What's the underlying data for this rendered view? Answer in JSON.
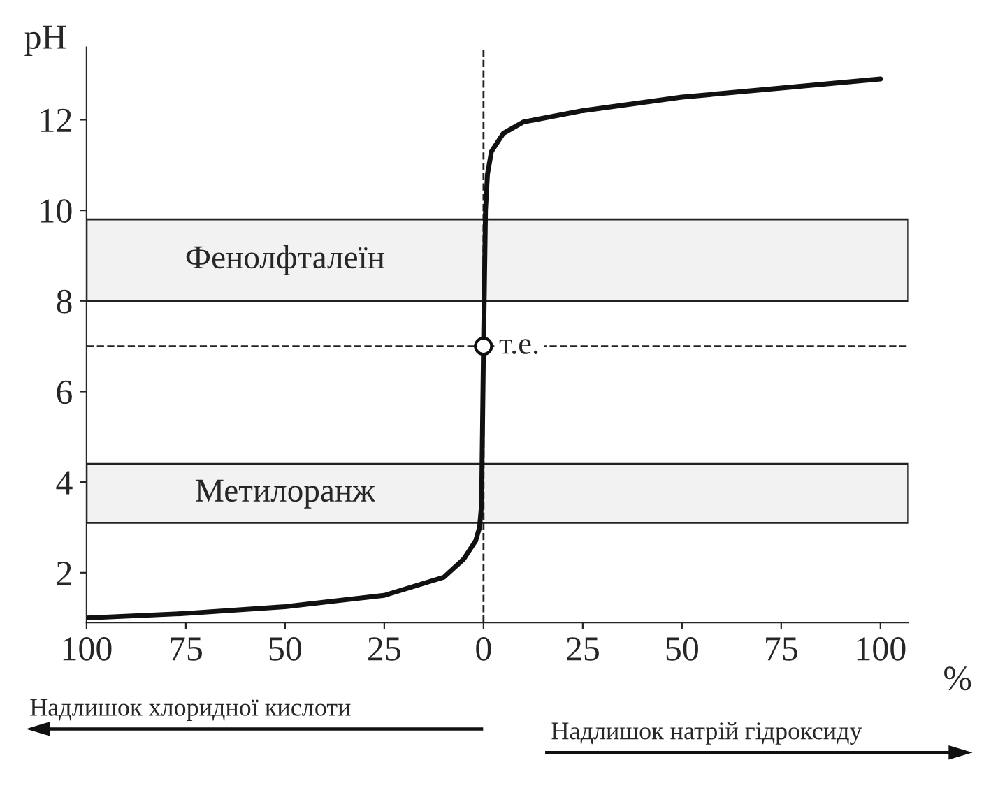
{
  "chart_data": {
    "type": "line",
    "ylabel": "pH",
    "xlabel": "%",
    "x": [
      -100,
      -75,
      -50,
      -25,
      -10,
      -5,
      -2,
      -1,
      -0.5,
      0,
      0.5,
      1,
      2,
      5,
      10,
      25,
      50,
      75,
      100
    ],
    "series": [
      {
        "color": "#111111",
        "values": [
          1.0,
          1.1,
          1.25,
          1.5,
          1.9,
          2.3,
          2.7,
          3.0,
          3.5,
          7,
          10,
          10.8,
          11.3,
          11.7,
          11.95,
          12.2,
          12.5,
          12.7,
          12.9
        ]
      },
      {
        "type": "scatter",
        "x": [
          0
        ],
        "values": [
          7
        ],
        "color": "#ffffff",
        "marker": "circle"
      }
    ],
    "xlim": [
      -100,
      107
    ],
    "ylim": [
      0.9,
      13.6
    ],
    "xticks": [
      {
        "value": -100,
        "label": "100"
      },
      {
        "value": -75,
        "label": "75"
      },
      {
        "value": -50,
        "label": "50"
      },
      {
        "value": -25,
        "label": "25"
      },
      0,
      25,
      50,
      75,
      100
    ],
    "yticks": [
      2,
      4,
      6,
      8,
      10,
      12
    ],
    "bands": [
      {
        "axis": "y",
        "from": 8,
        "to": 9.8,
        "label": "Фенолфталеїн",
        "color": "#f2f2f2"
      },
      {
        "axis": "y",
        "from": 3.1,
        "to": 4.4,
        "label": "Метилоранж",
        "color": "#f2f2f2"
      }
    ],
    "ref_lines": [
      {
        "axis": "y",
        "value": 7,
        "line_style": "dashed"
      },
      {
        "axis": "x",
        "value": 0,
        "line_style": "dashed"
      }
    ],
    "annotations": [
      {
        "text": "т.е.",
        "x": 0,
        "y": 7
      },
      "Надлишок хлоридної кислоти",
      "Надлишок натрій гідроксиду"
    ],
    "grid": false,
    "legend": false
  }
}
